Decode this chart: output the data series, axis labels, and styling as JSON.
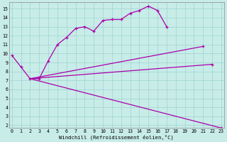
{
  "xlabel": "Windchill (Refroidissement éolien,°C)",
  "bg_color": "#c8ece8",
  "line_color": "#aa00aa",
  "grid_color": "#9dd4d0",
  "line1_x": [
    0,
    1,
    2,
    3,
    4,
    5,
    6,
    7,
    8,
    9,
    10,
    11,
    12,
    13,
    14,
    15,
    16,
    17
  ],
  "line1_y": [
    9.8,
    8.5,
    7.2,
    7.2,
    9.2,
    11.0,
    11.8,
    12.8,
    13.0,
    12.5,
    13.7,
    13.8,
    13.8,
    14.5,
    14.8,
    15.3,
    14.8,
    13.0
  ],
  "line2_x": [
    2,
    21
  ],
  "line2_y": [
    7.2,
    10.8
  ],
  "line3_x": [
    2,
    22
  ],
  "line3_y": [
    7.2,
    8.8
  ],
  "line4_x": [
    2,
    23
  ],
  "line4_y": [
    7.2,
    1.7
  ],
  "xlim_min": -0.3,
  "xlim_max": 23.3,
  "ylim_min": 1.7,
  "ylim_max": 15.7,
  "xticks": [
    0,
    1,
    2,
    3,
    4,
    5,
    6,
    7,
    8,
    9,
    10,
    11,
    12,
    13,
    14,
    15,
    16,
    17,
    18,
    19,
    20,
    21,
    22,
    23
  ],
  "yticks": [
    2,
    3,
    4,
    5,
    6,
    7,
    8,
    9,
    10,
    11,
    12,
    13,
    14,
    15
  ],
  "tick_fontsize": 4.8,
  "xlabel_fontsize": 5.2
}
